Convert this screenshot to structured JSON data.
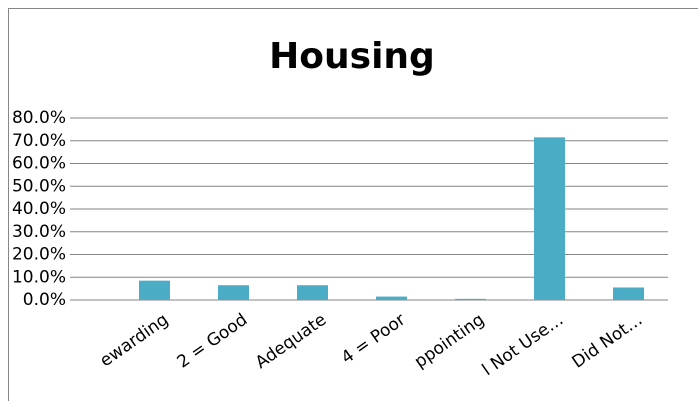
{
  "chart_data": {
    "type": "bar",
    "title": "Housing",
    "categories": [
      "ewarding",
      "2 = Good",
      "Adequate",
      "4 = Poor",
      "ppointing",
      "l Not Use…",
      "Did Not…"
    ],
    "values": [
      8.5,
      6.5,
      6.5,
      1.5,
      0.5,
      71.5,
      5.5
    ],
    "color": "#4bacc6",
    "ylim": [
      0,
      80
    ],
    "yticks": [
      {
        "value": 0,
        "label": "0.0%"
      },
      {
        "value": 10,
        "label": "10.0%"
      },
      {
        "value": 20,
        "label": "20.0%"
      },
      {
        "value": 30,
        "label": "30.0%"
      },
      {
        "value": 40,
        "label": "40.0%"
      },
      {
        "value": 50,
        "label": "50.0%"
      },
      {
        "value": 60,
        "label": "60.0%"
      },
      {
        "value": 70,
        "label": "70.0%"
      },
      {
        "value": 80,
        "label": "80.0%"
      }
    ],
    "grid": true
  }
}
